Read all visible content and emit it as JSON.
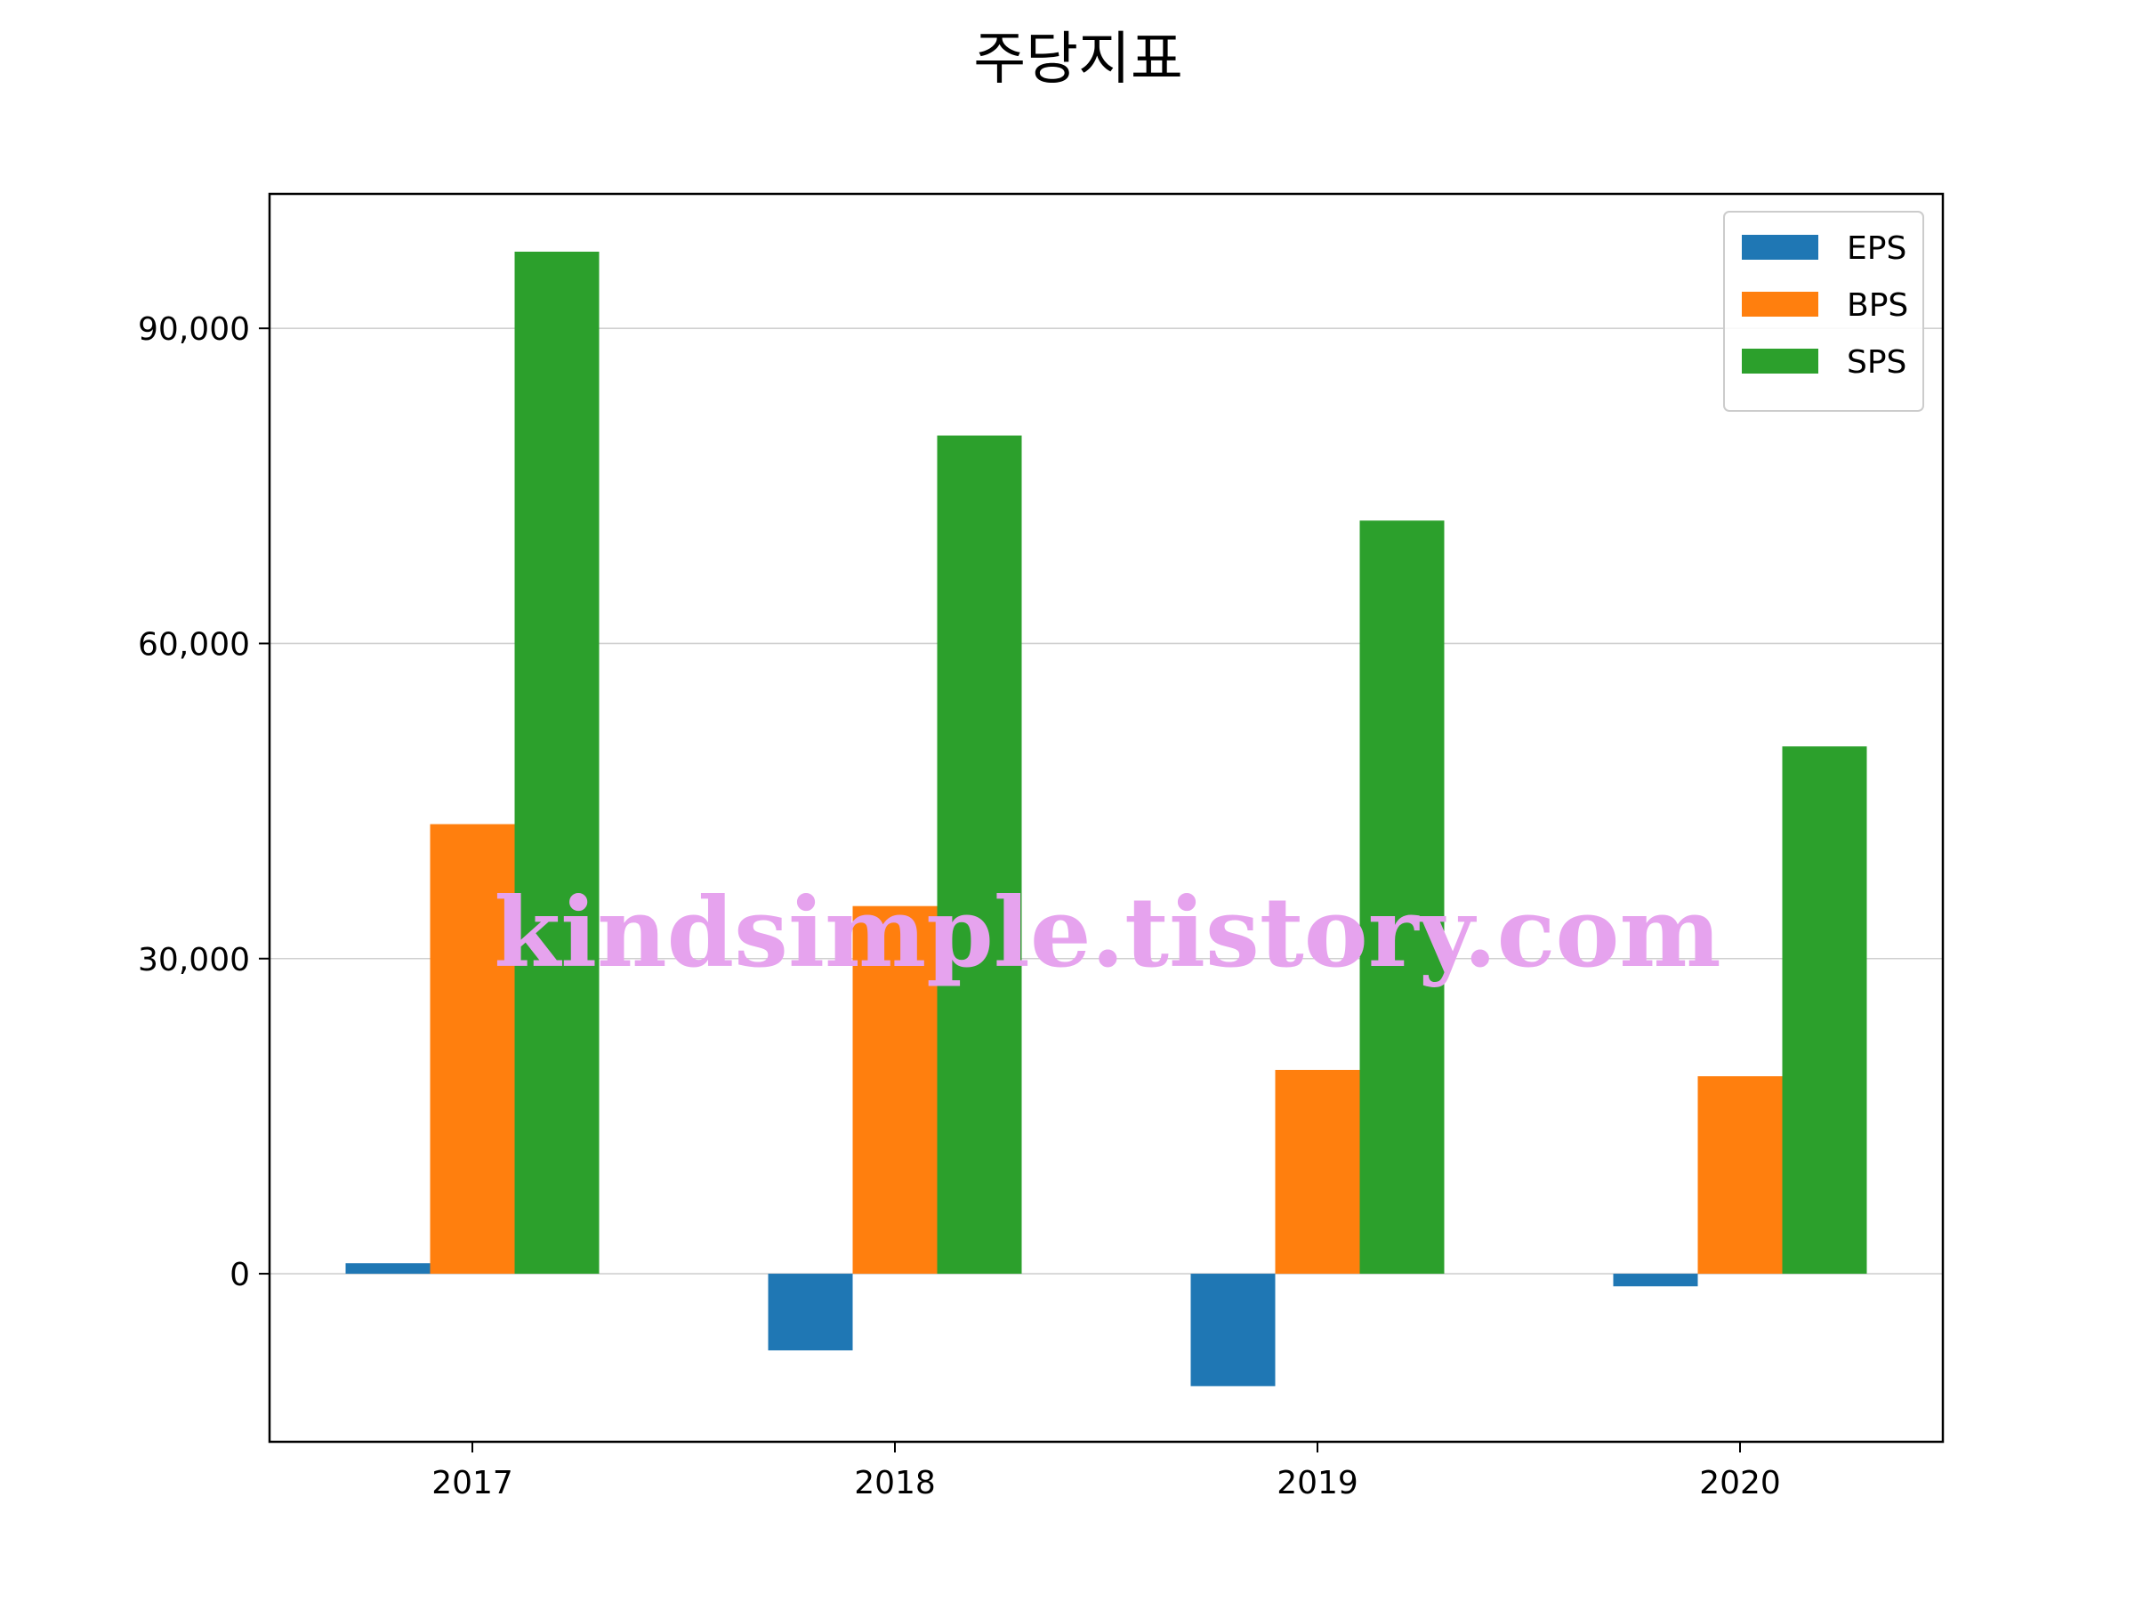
{
  "chart_data": {
    "type": "bar",
    "title": "주당지표",
    "xlabel": "",
    "ylabel": "",
    "categories": [
      "2017",
      "2018",
      "2019",
      "2020"
    ],
    "series": [
      {
        "name": "EPS",
        "color": "#1f77b4",
        "values": [
          1000,
          -7300,
          -10700,
          -1200
        ]
      },
      {
        "name": "BPS",
        "color": "#ff7f0e",
        "values": [
          42800,
          35000,
          19400,
          18800
        ]
      },
      {
        "name": "SPS",
        "color": "#2ca02c",
        "values": [
          97300,
          79800,
          71700,
          50200
        ]
      }
    ],
    "ylim": [
      -16000,
      102800
    ],
    "yticks": [
      0,
      30000,
      60000,
      90000
    ],
    "ytick_labels": [
      "0",
      "30,000",
      "60,000",
      "90,000"
    ],
    "grid": "y",
    "legend": "top-right",
    "watermark": "kindsimple.tistory.com"
  }
}
